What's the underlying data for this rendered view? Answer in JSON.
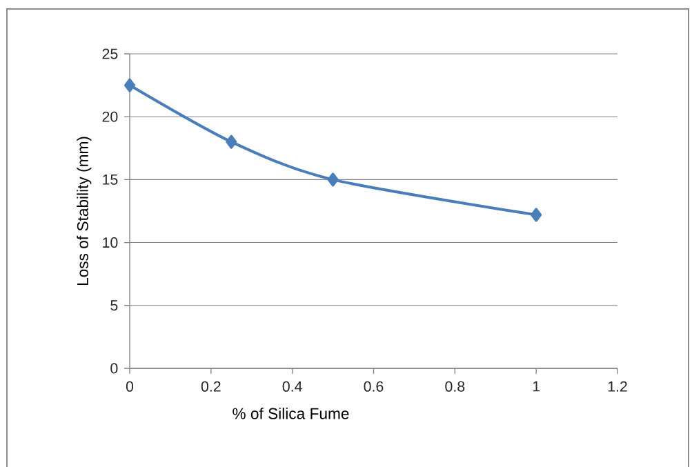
{
  "chart_data": {
    "type": "line",
    "xlabel": "% of Silica Fume",
    "ylabel": "Loss of Stability (mm)",
    "x": [
      0,
      0.25,
      0.5,
      1
    ],
    "series": [
      {
        "color": "#4a7ebb",
        "values": [
          22.5,
          18,
          15,
          12.2
        ]
      }
    ],
    "xlim": [
      0,
      1.2
    ],
    "xticks": [
      0,
      0.2,
      0.4,
      0.6,
      0.8,
      1,
      1.2
    ],
    "ylim": [
      0,
      25
    ],
    "yticks": [
      0,
      5,
      10,
      15,
      20,
      25
    ],
    "grid": "y",
    "marker": "diamond",
    "line_style": "solid"
  }
}
